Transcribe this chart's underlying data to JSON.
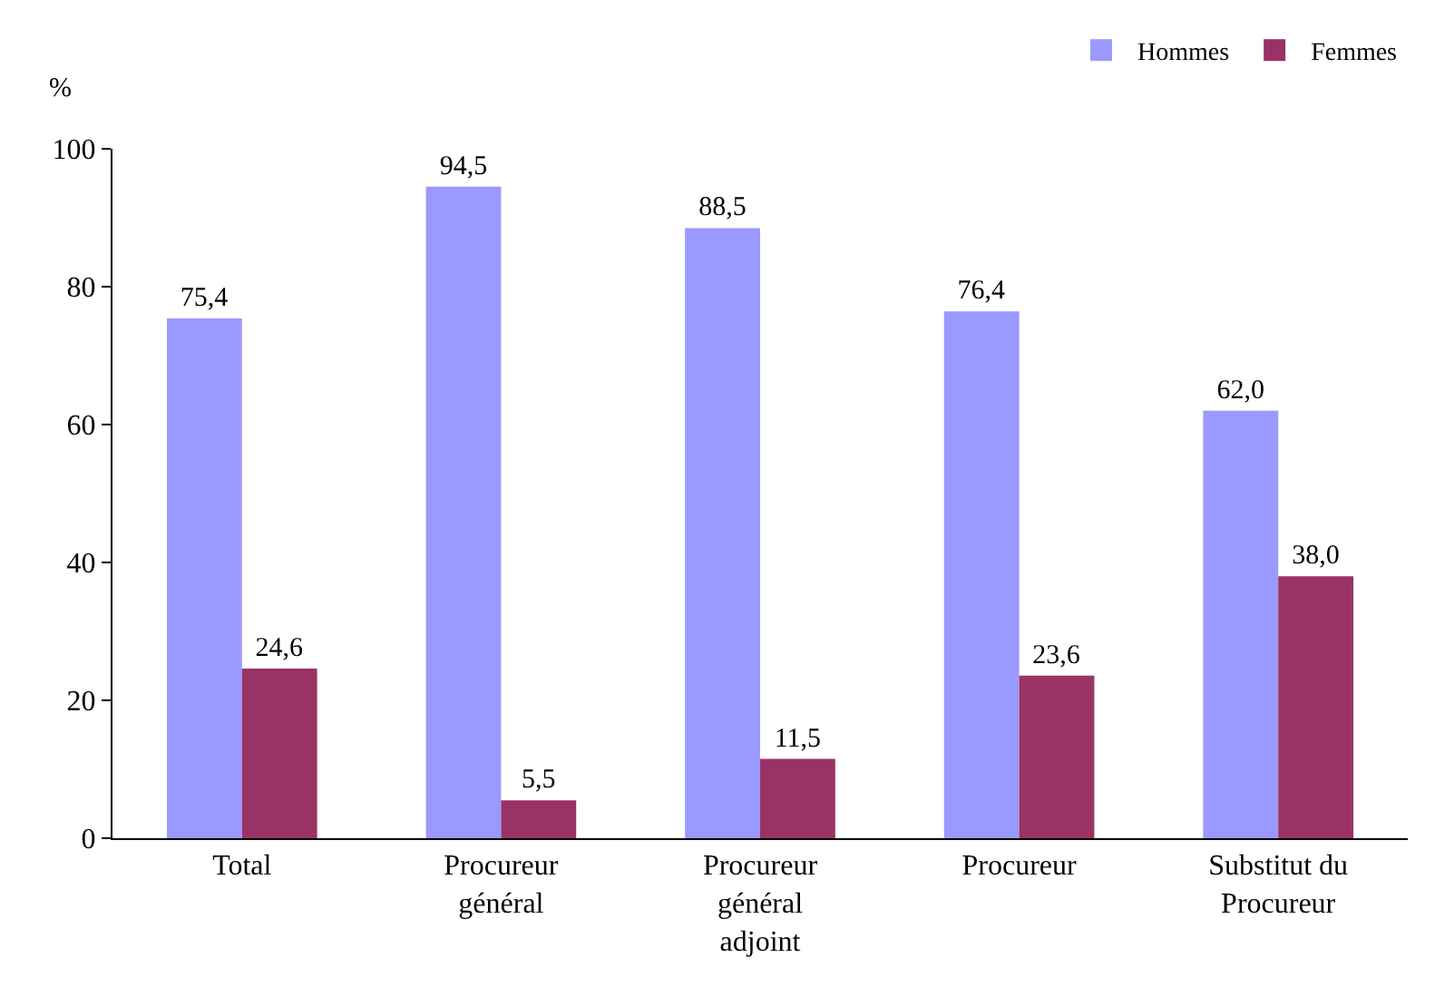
{
  "chart_data": {
    "type": "bar",
    "ylabel": "%",
    "categories": [
      "Total",
      "Procureur général",
      "Procureur général adjoint",
      "Procureur",
      "Substitut du Procureur"
    ],
    "series": [
      {
        "name": "Hommes",
        "color": "#9999ff",
        "values": [
          75.4,
          94.5,
          88.5,
          76.4,
          62.0
        ],
        "value_labels": [
          "75,4",
          "94,5",
          "88,5",
          "76,4",
          "62,0"
        ]
      },
      {
        "name": "Femmes",
        "color": "#993366",
        "values": [
          24.6,
          5.5,
          11.5,
          23.6,
          38.0
        ],
        "value_labels": [
          "24,6",
          "5,5",
          "11,5",
          "23,6",
          "38,0"
        ]
      }
    ],
    "ylim": [
      0,
      100
    ],
    "yticks": [
      0,
      20,
      40,
      60,
      80,
      100
    ],
    "grid": false,
    "legend": "top right"
  }
}
